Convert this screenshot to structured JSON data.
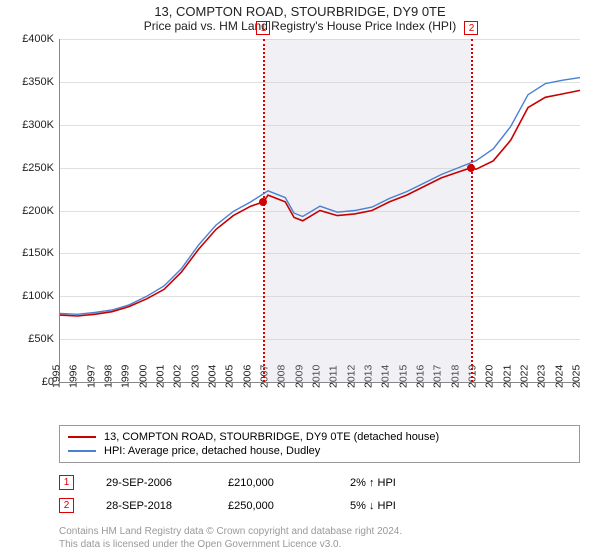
{
  "title": "13, COMPTON ROAD, STOURBRIDGE, DY9 0TE",
  "subtitle": "Price paid vs. HM Land Registry's House Price Index (HPI)",
  "chart": {
    "type": "line",
    "background_color": "#ffffff",
    "grid_color": "#e0e0e0",
    "ylim": [
      0,
      400000
    ],
    "ytick_step": 50000,
    "yticks": [
      "£0",
      "£50K",
      "£100K",
      "£150K",
      "£200K",
      "£250K",
      "£300K",
      "£350K",
      "£400K"
    ],
    "xlim": [
      1995,
      2025
    ],
    "xticks": [
      1995,
      1996,
      1997,
      1998,
      1999,
      2000,
      2001,
      2002,
      2003,
      2004,
      2005,
      2006,
      2007,
      2008,
      2009,
      2010,
      2011,
      2012,
      2013,
      2014,
      2015,
      2016,
      2017,
      2018,
      2019,
      2020,
      2021,
      2022,
      2023,
      2024,
      2025
    ],
    "shaded_region": {
      "start": 2006.74,
      "end": 2018.74
    },
    "series": [
      {
        "name": "property",
        "label": "13, COMPTON ROAD, STOURBRIDGE, DY9 0TE (detached house)",
        "color": "#c70000",
        "line_width": 1.6,
        "values": [
          [
            1995,
            78000
          ],
          [
            1996,
            77000
          ],
          [
            1997,
            79000
          ],
          [
            1998,
            82000
          ],
          [
            1999,
            88000
          ],
          [
            2000,
            97000
          ],
          [
            2001,
            108000
          ],
          [
            2002,
            128000
          ],
          [
            2003,
            155000
          ],
          [
            2004,
            178000
          ],
          [
            2005,
            194000
          ],
          [
            2006,
            205000
          ],
          [
            2006.74,
            210000
          ],
          [
            2007,
            218000
          ],
          [
            2008,
            210000
          ],
          [
            2008.5,
            192000
          ],
          [
            2009,
            188000
          ],
          [
            2010,
            200000
          ],
          [
            2011,
            194000
          ],
          [
            2012,
            196000
          ],
          [
            2013,
            200000
          ],
          [
            2014,
            210000
          ],
          [
            2015,
            218000
          ],
          [
            2016,
            228000
          ],
          [
            2017,
            238000
          ],
          [
            2018,
            245000
          ],
          [
            2018.74,
            250000
          ],
          [
            2019,
            248000
          ],
          [
            2020,
            258000
          ],
          [
            2021,
            282000
          ],
          [
            2022,
            320000
          ],
          [
            2023,
            332000
          ],
          [
            2024,
            336000
          ],
          [
            2025,
            340000
          ]
        ]
      },
      {
        "name": "hpi",
        "label": "HPI: Average price, detached house, Dudley",
        "color": "#4a7fd1",
        "line_width": 1.4,
        "values": [
          [
            1995,
            80000
          ],
          [
            1996,
            79000
          ],
          [
            1997,
            81000
          ],
          [
            1998,
            84000
          ],
          [
            1999,
            90000
          ],
          [
            2000,
            100000
          ],
          [
            2001,
            112000
          ],
          [
            2002,
            132000
          ],
          [
            2003,
            160000
          ],
          [
            2004,
            183000
          ],
          [
            2005,
            199000
          ],
          [
            2006,
            210000
          ],
          [
            2007,
            223000
          ],
          [
            2008,
            215000
          ],
          [
            2008.5,
            197000
          ],
          [
            2009,
            193000
          ],
          [
            2010,
            205000
          ],
          [
            2011,
            198000
          ],
          [
            2012,
            200000
          ],
          [
            2013,
            204000
          ],
          [
            2014,
            214000
          ],
          [
            2015,
            222000
          ],
          [
            2016,
            232000
          ],
          [
            2017,
            242000
          ],
          [
            2018,
            250000
          ],
          [
            2019,
            258000
          ],
          [
            2020,
            272000
          ],
          [
            2021,
            298000
          ],
          [
            2022,
            335000
          ],
          [
            2023,
            348000
          ],
          [
            2024,
            352000
          ],
          [
            2025,
            355000
          ]
        ]
      }
    ],
    "markers": [
      {
        "x": 2006.74,
        "y": 210000,
        "badge": "1",
        "color": "#d00000"
      },
      {
        "x": 2018.74,
        "y": 250000,
        "badge": "2",
        "color": "#d00000"
      }
    ]
  },
  "legend": {
    "items": [
      {
        "color": "#c70000",
        "label": "13, COMPTON ROAD, STOURBRIDGE, DY9 0TE (detached house)"
      },
      {
        "color": "#4a7fd1",
        "label": "HPI: Average price, detached house, Dudley"
      }
    ]
  },
  "transactions": [
    {
      "badge": "1",
      "date": "29-SEP-2006",
      "price": "£210,000",
      "diff": "2% ↑ HPI"
    },
    {
      "badge": "2",
      "date": "28-SEP-2018",
      "price": "£250,000",
      "diff": "5% ↓ HPI"
    }
  ],
  "footnote_line1": "Contains HM Land Registry data © Crown copyright and database right 2024.",
  "footnote_line2": "This data is licensed under the Open Government Licence v3.0."
}
